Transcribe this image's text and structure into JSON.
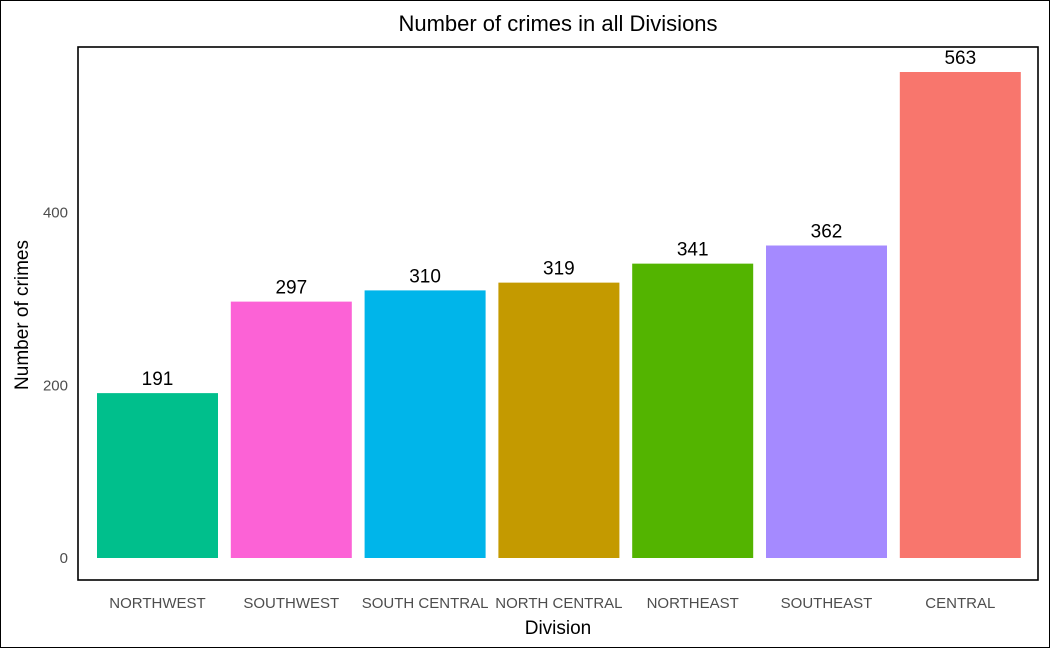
{
  "chart_data": {
    "type": "bar",
    "title": "Number of crimes in all Divisions",
    "xlabel": "Division",
    "ylabel": "Number of crimes",
    "categories": [
      "NORTHWEST",
      "SOUTHWEST",
      "SOUTH CENTRAL",
      "NORTH CENTRAL",
      "NORTHEAST",
      "SOUTHEAST",
      "CENTRAL"
    ],
    "values": [
      191,
      297,
      310,
      319,
      341,
      362,
      563
    ],
    "colors": [
      "#00BF8C",
      "#FC62D6",
      "#00B5EA",
      "#C49A00",
      "#53B400",
      "#A58AFF",
      "#F8766D"
    ],
    "yticks": [
      0,
      200,
      400
    ],
    "ylim": [
      0,
      563
    ],
    "grid": false,
    "legend": "none"
  }
}
